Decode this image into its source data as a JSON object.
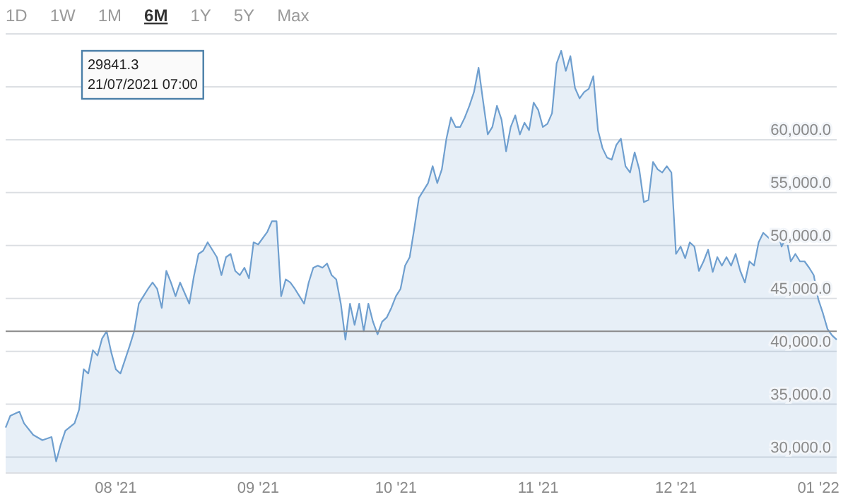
{
  "chart_data": {
    "type": "area",
    "color": "#6f9fcf",
    "x": [
      "2021-07-08",
      "2021-07-09",
      "2021-07-11",
      "2021-07-12",
      "2021-07-14",
      "2021-07-16",
      "2021-07-18",
      "2021-07-19",
      "2021-07-20",
      "2021-07-21",
      "2021-07-23",
      "2021-07-24",
      "2021-07-25",
      "2021-07-26",
      "2021-07-27",
      "2021-07-28",
      "2021-07-29",
      "2021-07-30",
      "2021-07-31",
      "2021-08-01",
      "2021-08-02",
      "2021-08-03",
      "2021-08-04",
      "2021-08-05",
      "2021-08-06",
      "2021-08-07",
      "2021-08-08",
      "2021-08-09",
      "2021-08-10",
      "2021-08-11",
      "2021-08-12",
      "2021-08-13",
      "2021-08-14",
      "2021-08-15",
      "2021-08-16",
      "2021-08-17",
      "2021-08-18",
      "2021-08-19",
      "2021-08-20",
      "2021-08-21",
      "2021-08-22",
      "2021-08-23",
      "2021-08-24",
      "2021-08-25",
      "2021-08-26",
      "2021-08-27",
      "2021-08-28",
      "2021-08-29",
      "2021-08-30",
      "2021-08-31",
      "2021-09-01",
      "2021-09-03",
      "2021-09-04",
      "2021-09-05",
      "2021-09-06",
      "2021-09-07",
      "2021-09-08",
      "2021-09-09",
      "2021-09-10",
      "2021-09-11",
      "2021-09-12",
      "2021-09-13",
      "2021-09-14",
      "2021-09-15",
      "2021-09-16",
      "2021-09-17",
      "2021-09-18",
      "2021-09-19",
      "2021-09-20",
      "2021-09-21",
      "2021-09-22",
      "2021-09-23",
      "2021-09-24",
      "2021-09-25",
      "2021-09-26",
      "2021-09-27",
      "2021-09-28",
      "2021-09-29",
      "2021-09-30",
      "2021-10-01",
      "2021-10-02",
      "2021-10-03",
      "2021-10-04",
      "2021-10-05",
      "2021-10-06",
      "2021-10-07",
      "2021-10-08",
      "2021-10-09",
      "2021-10-10",
      "2021-10-11",
      "2021-10-12",
      "2021-10-13",
      "2021-10-14",
      "2021-10-15",
      "2021-10-16",
      "2021-10-17",
      "2021-10-18",
      "2021-10-19",
      "2021-10-20",
      "2021-10-21",
      "2021-10-22",
      "2021-10-23",
      "2021-10-24",
      "2021-10-25",
      "2021-10-26",
      "2021-10-27",
      "2021-10-28",
      "2021-10-29",
      "2021-10-30",
      "2021-10-31",
      "2021-11-01",
      "2021-11-02",
      "2021-11-03",
      "2021-11-04",
      "2021-11-05",
      "2021-11-06",
      "2021-11-07",
      "2021-11-08",
      "2021-11-09",
      "2021-11-10",
      "2021-11-11",
      "2021-11-12",
      "2021-11-13",
      "2021-11-14",
      "2021-11-15",
      "2021-11-16",
      "2021-11-17",
      "2021-11-18",
      "2021-11-19",
      "2021-11-20",
      "2021-11-21",
      "2021-11-22",
      "2021-11-23",
      "2021-11-24",
      "2021-11-25",
      "2021-11-26",
      "2021-11-27",
      "2021-11-28",
      "2021-11-29",
      "2021-11-30",
      "2021-12-01",
      "2021-12-02",
      "2021-12-03",
      "2021-12-04",
      "2021-12-05",
      "2021-12-06",
      "2021-12-07",
      "2021-12-08",
      "2021-12-09",
      "2021-12-10",
      "2021-12-11",
      "2021-12-12",
      "2021-12-13",
      "2021-12-14",
      "2021-12-15",
      "2021-12-16",
      "2021-12-17",
      "2021-12-18",
      "2021-12-19",
      "2021-12-20",
      "2021-12-21",
      "2021-12-22",
      "2021-12-23",
      "2021-12-24",
      "2021-12-25",
      "2021-12-26",
      "2021-12-27",
      "2021-12-28",
      "2021-12-29",
      "2021-12-30",
      "2021-12-31",
      "2022-01-01",
      "2022-01-02",
      "2022-01-03",
      "2022-01-04",
      "2022-01-05"
    ],
    "values": [
      32800,
      33900,
      34300,
      33200,
      32100,
      31600,
      31900,
      29600,
      31200,
      32500,
      33200,
      34500,
      38300,
      37900,
      40100,
      39600,
      41200,
      41900,
      39900,
      38300,
      37900,
      39200,
      40500,
      41900,
      44500,
      45200,
      45900,
      46500,
      45900,
      44100,
      47600,
      46500,
      45200,
      46500,
      45500,
      44500,
      47100,
      49200,
      49500,
      50300,
      49600,
      48900,
      47200,
      48900,
      49200,
      47600,
      47200,
      47900,
      46900,
      50300,
      50100,
      51300,
      52300,
      52300,
      45200,
      46800,
      46500,
      45900,
      45200,
      44500,
      46500,
      47900,
      48100,
      47900,
      48300,
      47200,
      46800,
      44500,
      41100,
      44500,
      42500,
      44500,
      41900,
      44500,
      42800,
      41600,
      42800,
      43200,
      44100,
      45200,
      45900,
      48100,
      48900,
      51600,
      54500,
      55200,
      55900,
      57500,
      55900,
      57200,
      60100,
      62100,
      61200,
      61200,
      62100,
      63200,
      64500,
      66800,
      63600,
      60500,
      61200,
      63200,
      61900,
      58900,
      61200,
      62300,
      60500,
      61600,
      60900,
      63500,
      62800,
      61200,
      61500,
      62500,
      67200,
      68400,
      66500,
      67900,
      64900,
      63900,
      64500,
      64800,
      66000,
      60900,
      59200,
      58300,
      58100,
      59500,
      60100,
      57500,
      56900,
      58800,
      57200,
      54100,
      54300,
      57900,
      57200,
      56900,
      57500,
      56900,
      49200,
      49900,
      48800,
      50300,
      49900,
      47600,
      48500,
      49600,
      47500,
      48900,
      48100,
      48900,
      48100,
      49200,
      47600,
      46500,
      48500,
      48100,
      50300,
      51200,
      50800,
      50500,
      51500,
      49900,
      50800,
      48500,
      49200,
      48500,
      48500,
      47900,
      47200,
      44900,
      43600,
      42100,
      41500,
      41100
    ],
    "xlim": [
      "2021-07-08",
      "2022-01-05"
    ],
    "xticks": [
      {
        "value": "2021-08-01",
        "label": "08 '21"
      },
      {
        "value": "2021-09-01",
        "label": "09 '21"
      },
      {
        "value": "2021-10-01",
        "label": "10 '21"
      },
      {
        "value": "2021-11-01",
        "label": "11 '21"
      },
      {
        "value": "2021-12-01",
        "label": "12 '21"
      },
      {
        "value": "2022-01-01",
        "label": "01 '22"
      }
    ],
    "ylim": [
      28500,
      70000
    ],
    "yticks": [
      {
        "value": 30000,
        "label": "30,000.0"
      },
      {
        "value": 35000,
        "label": "35,000.0"
      },
      {
        "value": 40000,
        "label": "40,000.0"
      },
      {
        "value": 45000,
        "label": "45,000.0"
      },
      {
        "value": 50000,
        "label": "50,000.0"
      },
      {
        "value": 55000,
        "label": "55,000.0"
      },
      {
        "value": 60000,
        "label": "60,000.0"
      },
      {
        "value": 65000,
        "label": null
      },
      {
        "value": 70000,
        "label": null
      }
    ],
    "grid": "y",
    "ref_lines": [
      {
        "axis": "y",
        "value": 41900,
        "color": "#8a8a8a"
      }
    ],
    "annotations": [
      "29841.3\n21/07/2021 07:00",
      "1D",
      "1W",
      "1M",
      "6M",
      "1Y",
      "5Y",
      "Max"
    ]
  }
}
